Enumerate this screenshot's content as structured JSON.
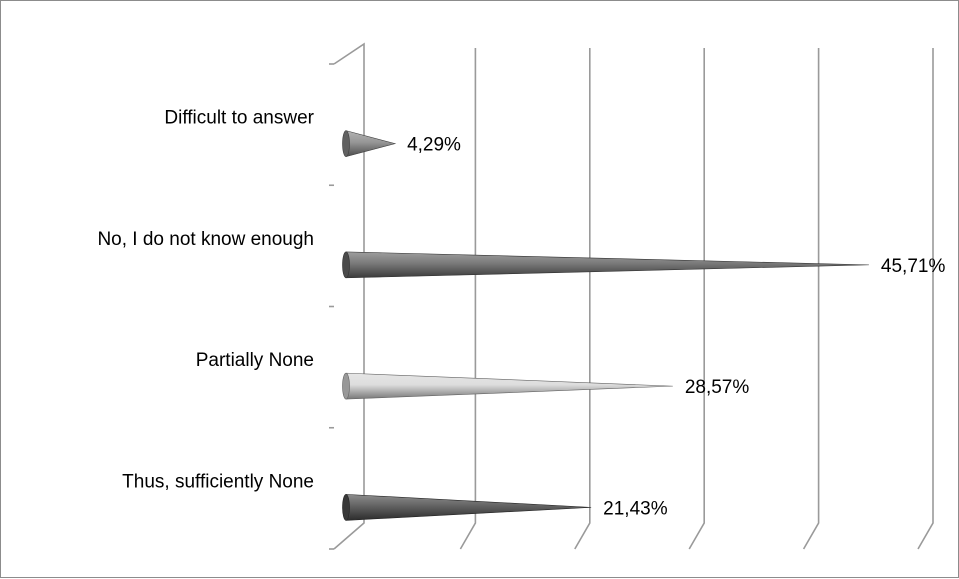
{
  "chart_data": {
    "type": "bar",
    "orientation": "horizontal",
    "style": "3d-cone",
    "categories": [
      "Difficult to answer",
      "No, I do not know enough",
      "Partially None",
      "Thus, sufficiently None"
    ],
    "values": [
      4.29,
      45.71,
      28.57,
      21.43
    ],
    "data_labels": [
      "4,29%",
      "45,71%",
      "28,57%",
      "21,43%"
    ],
    "bar_colors": [
      "#8a8a8a",
      "#6a6a6a",
      "#d9d9d9",
      "#505050"
    ],
    "xlim": [
      0,
      50
    ],
    "grid": true,
    "legend": "none",
    "title": "",
    "xlabel": "",
    "ylabel": ""
  }
}
